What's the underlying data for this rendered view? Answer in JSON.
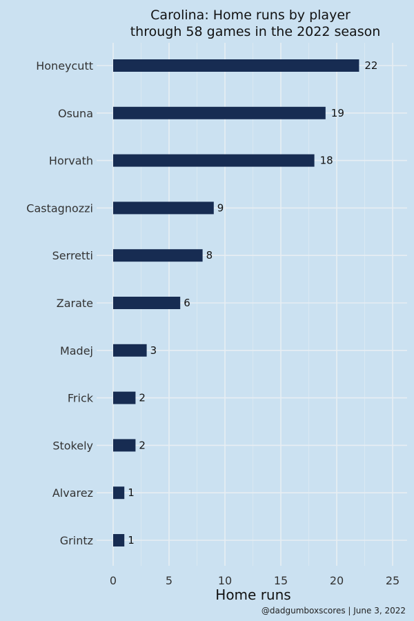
{
  "chart_data": {
    "type": "bar",
    "orientation": "horizontal",
    "title_lines": [
      "Carolina: Home runs by player",
      "through 58 games in the 2022 season"
    ],
    "xlabel": "Home runs",
    "ylabel": "",
    "caption": "@dadgumboxscores | June 3, 2022",
    "categories": [
      "Honeycutt",
      "Osuna",
      "Horvath",
      "Castagnozzi",
      "Serretti",
      "Zarate",
      "Madej",
      "Frick",
      "Stokely",
      "Alvarez",
      "Grintz"
    ],
    "values": [
      22,
      19,
      18,
      9,
      8,
      6,
      3,
      2,
      2,
      1,
      1
    ],
    "xlim": [
      0,
      25
    ],
    "xticks": [
      0,
      5,
      10,
      15,
      20,
      25
    ],
    "grid": true,
    "legend": "none",
    "colors": {
      "background": "#cbe1f1",
      "bar": "#172c52",
      "grid": "#e8eef3"
    }
  }
}
